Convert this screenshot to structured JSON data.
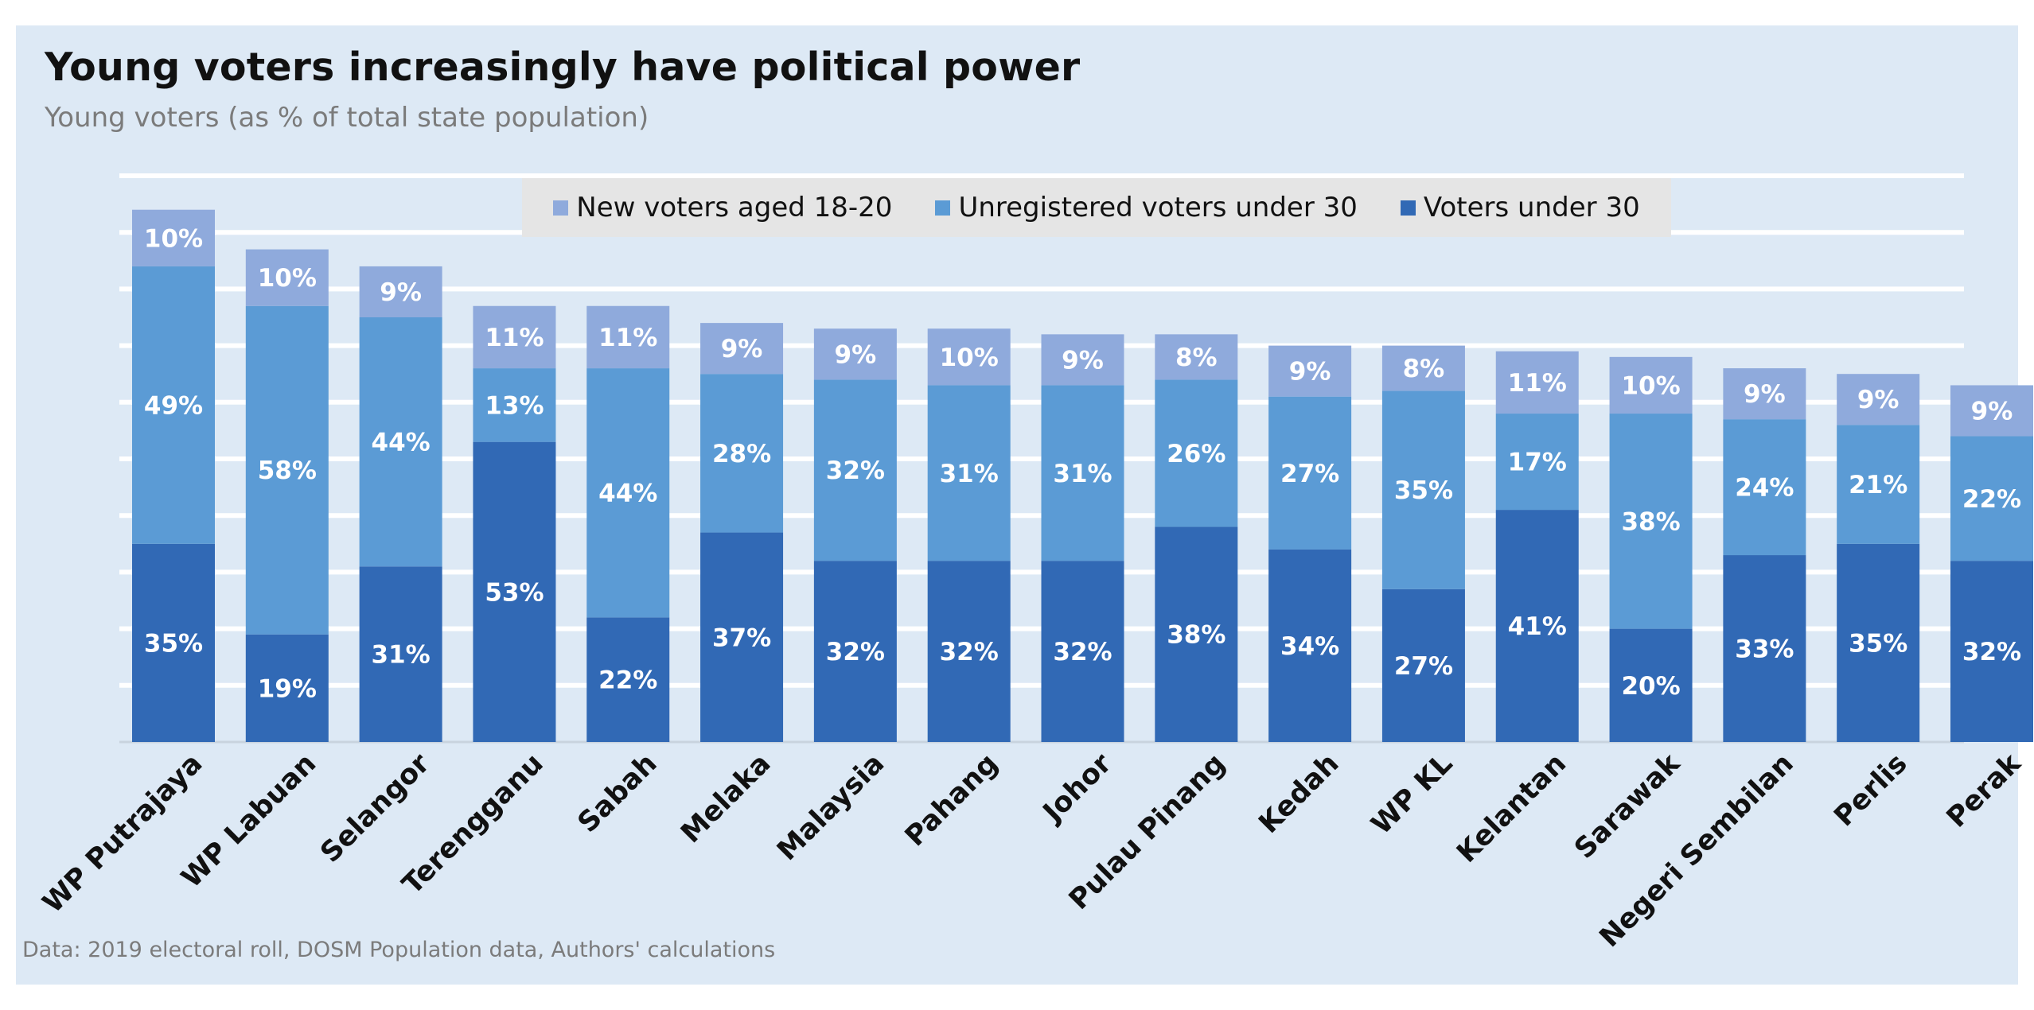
{
  "title": "Young voters increasingly have political power",
  "subtitle": "Young voters (as % of total state population)",
  "source": "Data: 2019 electoral roll, DOSM Population data, Authors' calculations",
  "colors": {
    "background": "#dde9f5",
    "gridline": "#ffffff",
    "new_voters": "#8faadc",
    "unregistered": "#5b9bd5",
    "voters_under_30": "#3169b5",
    "label": "#ffffff"
  },
  "chart_data": {
    "type": "bar",
    "stacked": true,
    "categories": [
      "WP Putrajaya",
      "WP Labuan",
      "Selangor",
      "Terengganu",
      "Sabah",
      "Melaka",
      "Malaysia",
      "Pahang",
      "Johor",
      "Pulau Pinang",
      "Kedah",
      "WP KL",
      "Kelantan",
      "Sarawak",
      "Negeri Sembilan",
      "Perlis",
      "Perak"
    ],
    "series": [
      {
        "name": "Voters under 30",
        "values": [
          35,
          19,
          31,
          53,
          22,
          37,
          32,
          32,
          32,
          38,
          34,
          27,
          41,
          20,
          33,
          35,
          32
        ],
        "labels": [
          "35%",
          "19%",
          "31%",
          "53%",
          "22%",
          "37%",
          "32%",
          "32%",
          "32%",
          "38%",
          "34%",
          "27%",
          "41%",
          "20%",
          "33%",
          "35%",
          "32%"
        ]
      },
      {
        "name": "Unregistered voters under 30",
        "values": [
          49,
          58,
          44,
          13,
          44,
          28,
          32,
          31,
          31,
          26,
          27,
          35,
          17,
          38,
          24,
          21,
          22
        ],
        "labels": [
          "49%",
          "58%",
          "44%",
          "13%",
          "44%",
          "28%",
          "32%",
          "31%",
          "31%",
          "26%",
          "27%",
          "35%",
          "17%",
          "38%",
          "24%",
          "21%",
          "22%"
        ]
      },
      {
        "name": "New voters aged 18-20",
        "values": [
          10,
          10,
          9,
          11,
          11,
          9,
          9,
          10,
          9,
          8,
          9,
          8,
          11,
          10,
          9,
          9,
          9
        ],
        "labels": [
          "10%",
          "10%",
          "9%",
          "11%",
          "11%",
          "9%",
          "9%",
          "10%",
          "9%",
          "8%",
          "9%",
          "8%",
          "11%",
          "10%",
          "9%",
          "9%",
          "9%"
        ]
      }
    ],
    "legend": {
      "position": "top",
      "order": [
        "New voters aged 18-20",
        "Unregistered voters under 30",
        "Voters under 30"
      ]
    },
    "ylim": [
      0,
      100
    ],
    "grid": true,
    "y_axis_visible": false
  }
}
